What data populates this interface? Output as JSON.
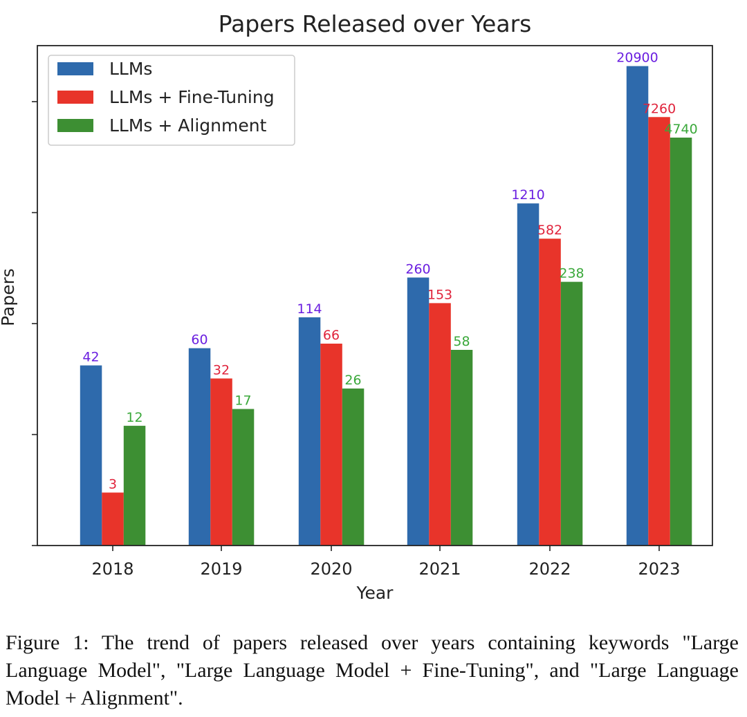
{
  "chart_data": {
    "type": "bar",
    "title": "Papers Released over Years",
    "xlabel": "Year",
    "ylabel": "Papers",
    "y_scale": "log",
    "categories": [
      "2018",
      "2019",
      "2020",
      "2021",
      "2022",
      "2023"
    ],
    "series": [
      {
        "name": "LLMs",
        "color": "#2e6aac",
        "label_color": "#6a1ee0",
        "values": [
          42,
          60,
          114,
          260,
          1210,
          20900
        ]
      },
      {
        "name": "LLMs + Fine-Tuning",
        "color": "#e8342a",
        "label_color": "#e0243c",
        "values": [
          3,
          32,
          66,
          153,
          582,
          7260
        ]
      },
      {
        "name": "LLMs + Alignment",
        "color": "#3d8f33",
        "label_color": "#3aa83a",
        "values": [
          12,
          17,
          26,
          58,
          238,
          4740
        ]
      }
    ],
    "legend_position": "top-left",
    "grid": false
  },
  "caption": "Figure 1: The trend of papers released over years containing keywords \"Large Language Model\", \"Large Language Model + Fine-Tuning\", and \"Large Language Model + Alignment\"."
}
